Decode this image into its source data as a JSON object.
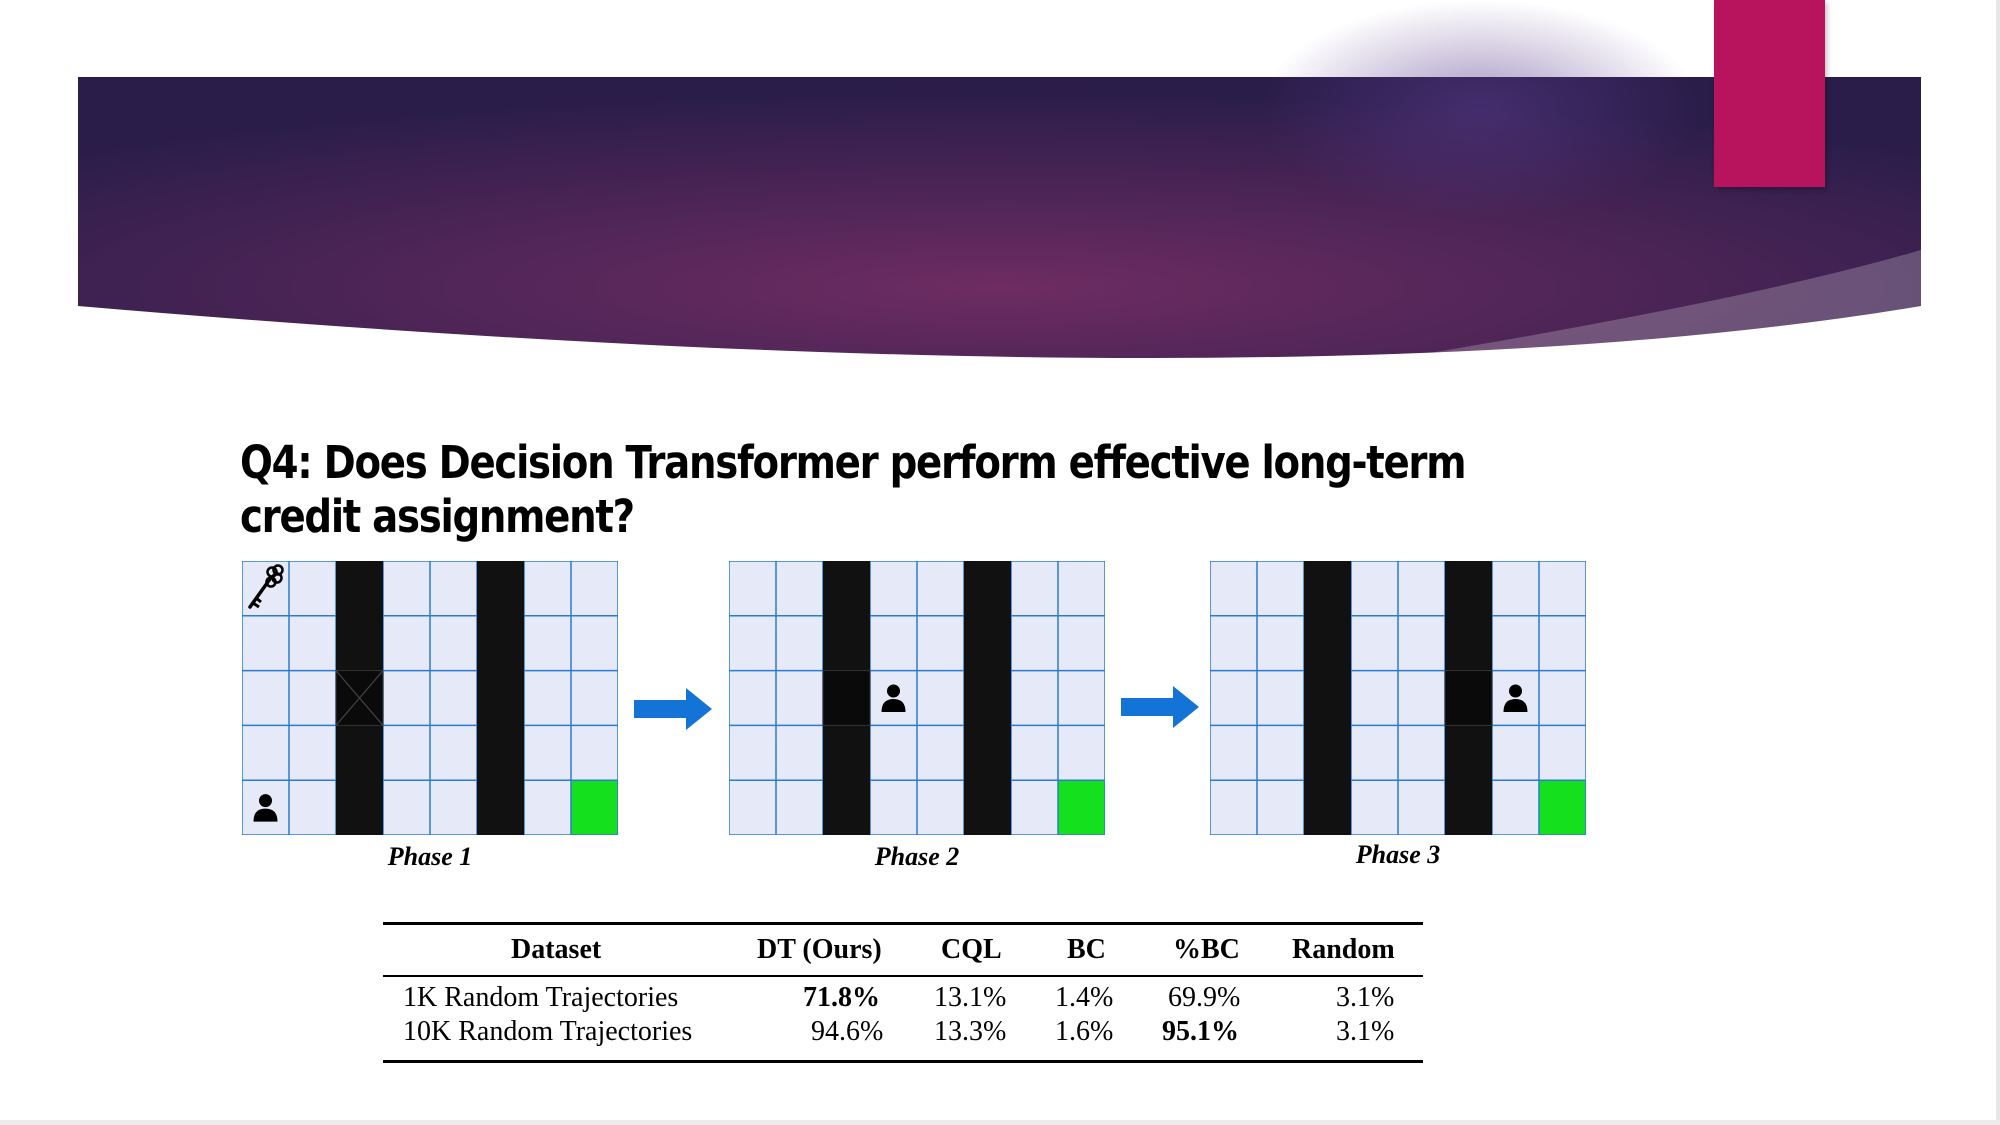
{
  "slide": {
    "title": "Q4: Does Decision Transformer perform effective long-term credit assignment?",
    "colors": {
      "banner_center": "#6e2c62",
      "banner_edge": "#2a1d4a",
      "accent_tab": "#b8145e",
      "grid_cell": "#e6e9f7",
      "grid_line": "#2a7bd3",
      "wall": "#111111",
      "goal": "#14e01e",
      "arrow": "#1473d6"
    }
  },
  "figure": {
    "grid_size": {
      "rows": 5,
      "cols": 8
    },
    "phases": [
      {
        "label": "Phase 1",
        "walls": [
          2,
          5
        ],
        "door_cell": [
          2,
          2
        ],
        "key_cell": [
          0,
          0
        ],
        "agent_cell": [
          4,
          0
        ],
        "goal_cell": [
          4,
          7
        ]
      },
      {
        "label": "Phase 2",
        "walls": [
          2,
          5
        ],
        "door_cell": [
          2,
          2
        ],
        "key_cell": null,
        "agent_cell": [
          2,
          3
        ],
        "goal_cell": [
          4,
          7
        ]
      },
      {
        "label": "Phase 3",
        "walls": [
          2,
          5
        ],
        "door_cell": [
          2,
          5
        ],
        "key_cell": null,
        "agent_cell": [
          2,
          6
        ],
        "goal_cell": [
          4,
          7
        ]
      }
    ],
    "icons": {
      "key": "key-icon",
      "agent": "person-icon",
      "arrow": "right-arrow-icon"
    }
  },
  "table": {
    "headers": [
      "Dataset",
      "DT (Ours)",
      "CQL",
      "BC",
      "%BC",
      "Random"
    ],
    "rows": [
      {
        "cells": [
          "1K Random Trajectories",
          "71.8%",
          "13.1%",
          "1.4%",
          "69.9%",
          "3.1%"
        ],
        "bold": [
          1
        ]
      },
      {
        "cells": [
          "10K Random Trajectories",
          "94.6%",
          "13.3%",
          "1.6%",
          "95.1%",
          "3.1%"
        ],
        "bold": [
          4
        ]
      }
    ]
  }
}
